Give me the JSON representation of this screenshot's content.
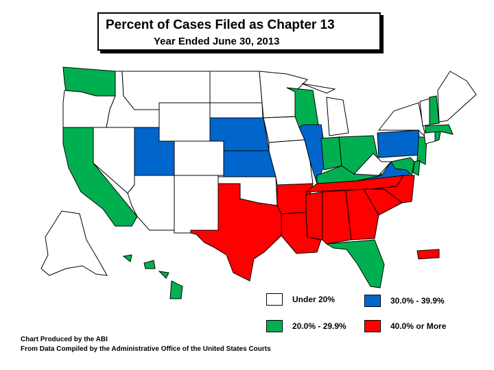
{
  "title": "Percent of Cases Filed as Chapter 13",
  "subtitle": "Year Ended June 30, 2013",
  "legend": [
    {
      "label": "Under 20%",
      "color": "#ffffff",
      "category": "under20"
    },
    {
      "label": "30.0% - 39.9%",
      "color": "#0066cc",
      "category": "c30"
    },
    {
      "label": "20.0% - 29.9%",
      "color": "#00b050",
      "category": "c20"
    },
    {
      "label": "40.0% or More",
      "color": "#ff0000",
      "category": "c40"
    }
  ],
  "footer": {
    "line1": "Chart Produced by the ABI",
    "line2": "From Data Compiled by the Administrative Office of the United States Courts"
  },
  "chart_data": {
    "type": "choropleth",
    "region": "United States",
    "categories": {
      "under20": "Under 20%",
      "c20": "20.0% - 29.9%",
      "c30": "30.0% - 39.9%",
      "c40": "40.0% or More"
    },
    "states": {
      "WA": "c20",
      "OR": "under20",
      "CA": "c20",
      "NV": "under20",
      "ID": "under20",
      "MT": "under20",
      "WY": "under20",
      "UT": "c30",
      "CO": "under20",
      "AZ": "under20",
      "NM": "under20",
      "ND": "under20",
      "SD": "under20",
      "NE": "c30",
      "KS": "c30",
      "OK": "under20",
      "TX": "c40",
      "MN": "under20",
      "IA": "under20",
      "MO": "under20",
      "AR": "c40",
      "LA": "c40",
      "WI": "c20",
      "IL": "c30",
      "MI": "under20",
      "IN": "c20",
      "OH": "c20",
      "KY": "c20",
      "TN": "c40",
      "MS": "c40",
      "AL": "c40",
      "GA": "c40",
      "FL": "c20",
      "SC": "c40",
      "NC": "c40",
      "VA": "c30",
      "WV": "under20",
      "PA": "c30",
      "NY": "under20",
      "NJ": "c20",
      "DE": "c20",
      "MD": "c20",
      "CT": "under20",
      "RI": "c20",
      "MA": "c20",
      "VT": "under20",
      "NH": "c20",
      "ME": "under20",
      "AK": "under20",
      "HI": "c20",
      "PR": "c40"
    }
  }
}
